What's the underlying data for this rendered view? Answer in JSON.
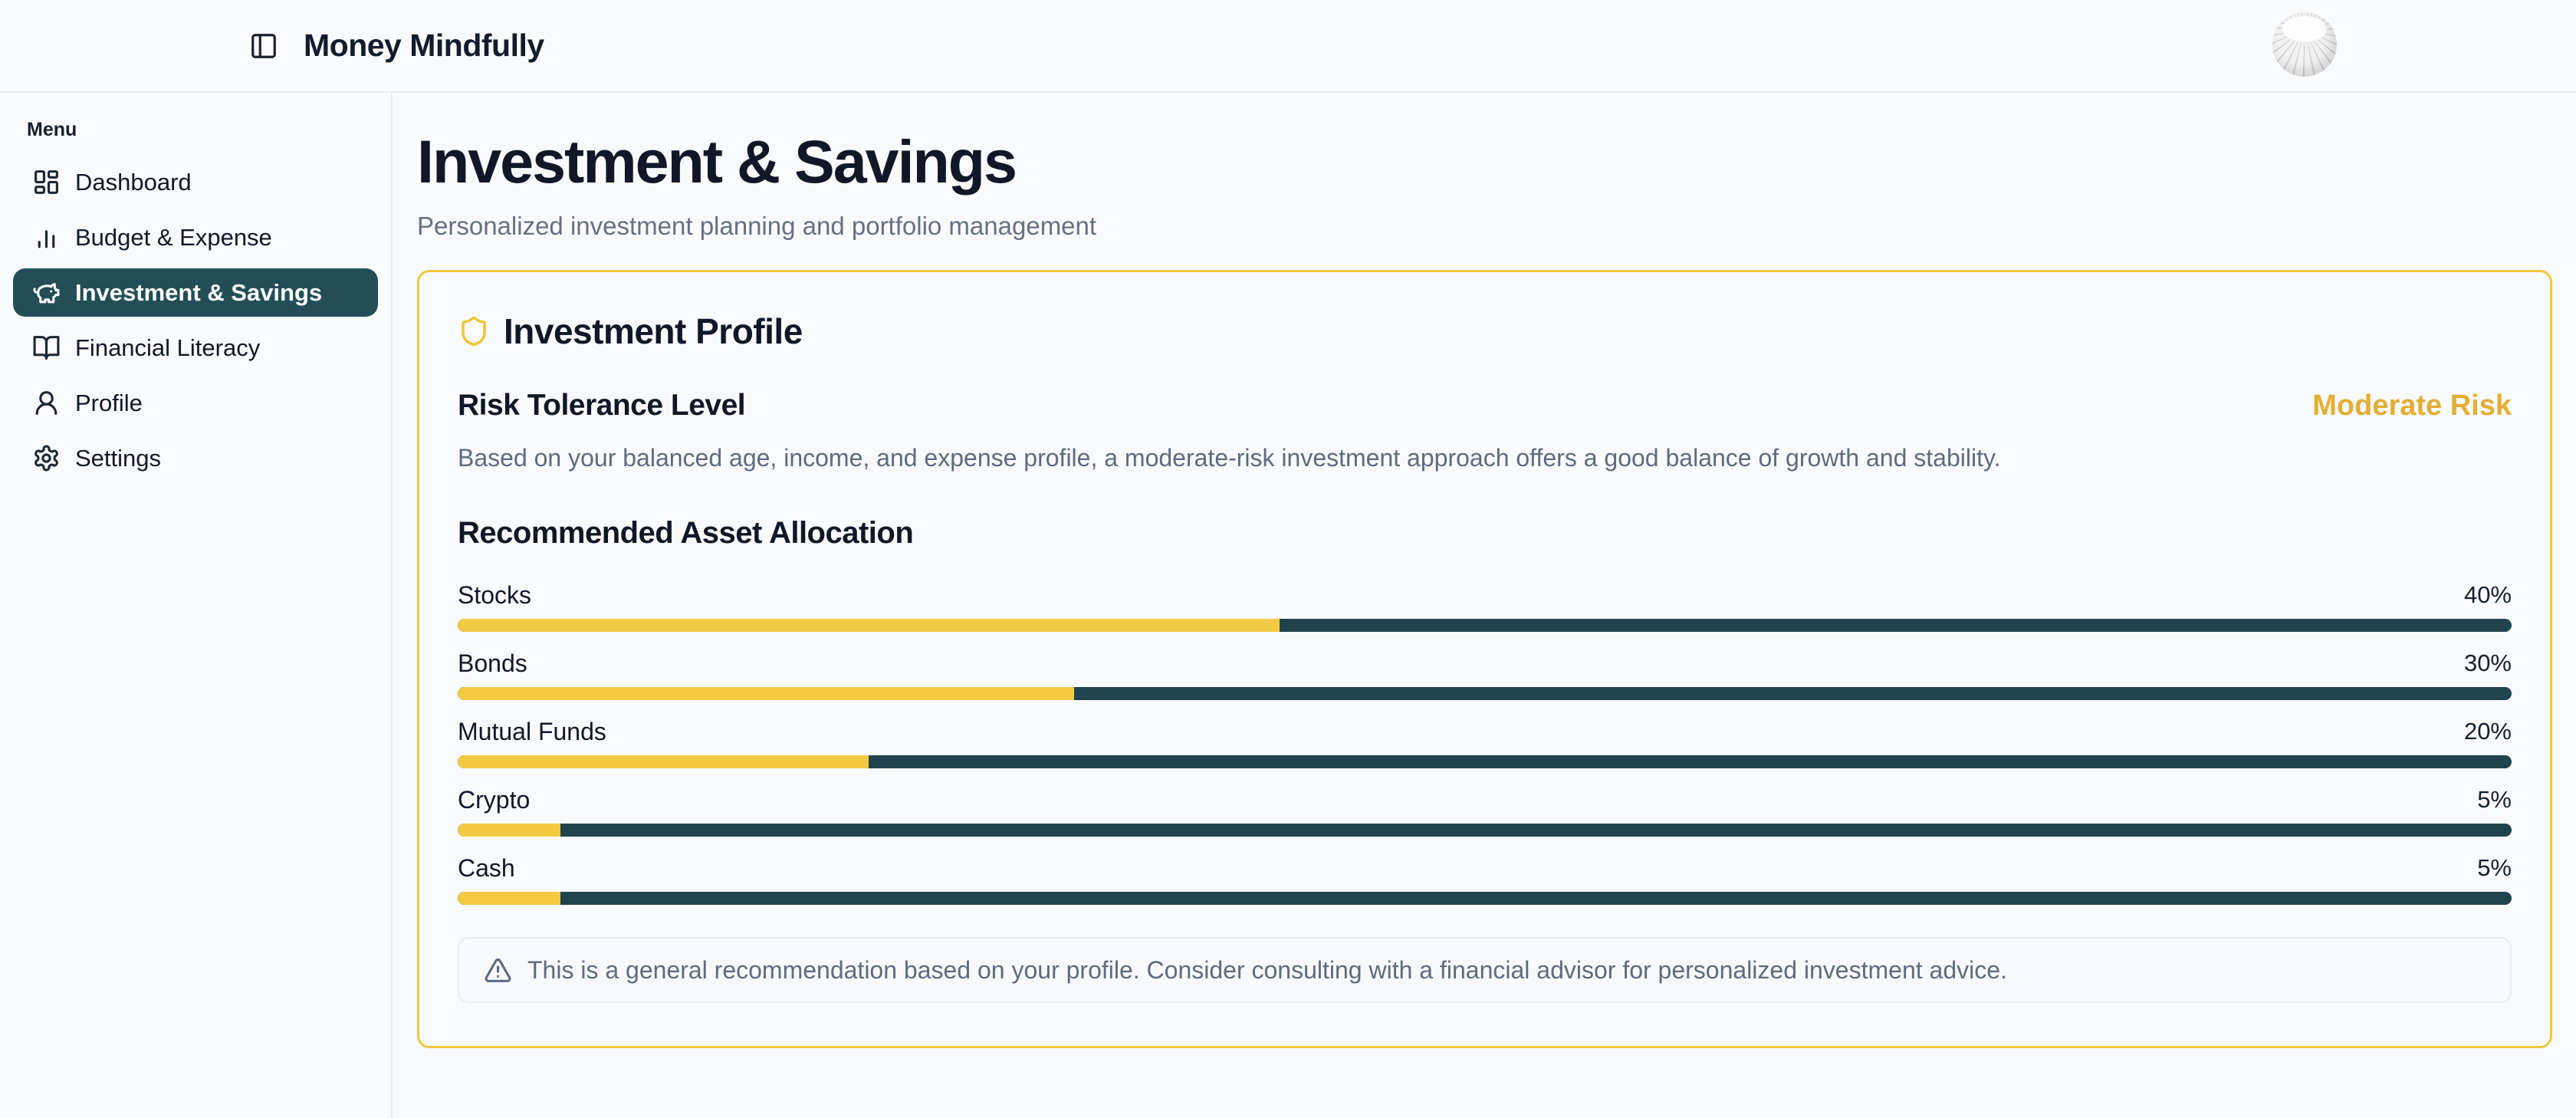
{
  "app": {
    "title": "Money Mindfully"
  },
  "header": {
    "avatar_label": "user-avatar"
  },
  "sidebar": {
    "menu_label": "Menu",
    "items": [
      {
        "label": "Dashboard",
        "icon": "dashboard-icon",
        "active": false
      },
      {
        "label": "Budget & Expense",
        "icon": "bar-chart-icon",
        "active": false
      },
      {
        "label": "Investment & Savings",
        "icon": "piggy-bank-icon",
        "active": true
      },
      {
        "label": "Financial Literacy",
        "icon": "book-open-icon",
        "active": false
      },
      {
        "label": "Profile",
        "icon": "user-icon",
        "active": false
      },
      {
        "label": "Settings",
        "icon": "gear-icon",
        "active": false
      }
    ]
  },
  "page": {
    "title": "Investment & Savings",
    "subtitle": "Personalized investment planning and portfolio management"
  },
  "card": {
    "title": "Investment Profile",
    "icon": "shield-icon",
    "risk": {
      "heading": "Risk Tolerance Level",
      "level": "Moderate Risk",
      "description": "Based on your balanced age, income, and expense profile, a moderate-risk investment approach offers a good balance of growth and stability."
    },
    "allocation": {
      "heading": "Recommended Asset Allocation",
      "items": [
        {
          "label": "Stocks",
          "value": 40,
          "display": "40%"
        },
        {
          "label": "Bonds",
          "value": 30,
          "display": "30%"
        },
        {
          "label": "Mutual Funds",
          "value": 20,
          "display": "20%"
        },
        {
          "label": "Crypto",
          "value": 5,
          "display": "5%"
        },
        {
          "label": "Cash",
          "value": 5,
          "display": "5%"
        }
      ]
    },
    "note": {
      "icon": "alert-triangle-icon",
      "text": "This is a general recommendation based on your profile. Consider consulting with a financial advisor for personalized investment advice."
    }
  },
  "colors": {
    "accent_gold": "#f3ca44",
    "gold_text": "#e3ae33",
    "card_border": "#eec83f",
    "teal_dark": "#20434e",
    "sidebar_active_bg": "#234e58",
    "heading_text": "#101828",
    "muted_text": "#5d6b80",
    "background": "#f8fafc"
  }
}
